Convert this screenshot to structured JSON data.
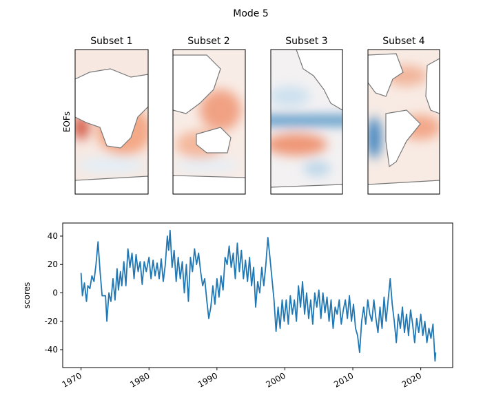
{
  "title": "Mode 5",
  "maps": {
    "ylabel": "EOFs",
    "titles": [
      "Subset 1",
      "Subset 2",
      "Subset 3",
      "Subset 4"
    ]
  },
  "chart_data": {
    "type": "line",
    "ylabel": "scores",
    "color": "#1f77b4",
    "xlim": [
      1967.3,
      2024.7
    ],
    "xticks": [
      1970,
      1980,
      1990,
      2000,
      2010,
      2020
    ],
    "ylim": [
      -52.6,
      49.2
    ],
    "yticks": [
      -40,
      -20,
      0,
      20,
      40
    ],
    "x": [
      1970.0,
      1970.2,
      1970.5,
      1970.8,
      1971.0,
      1971.3,
      1971.6,
      1971.9,
      1972.2,
      1972.5,
      1972.8,
      1973.1,
      1973.6,
      1973.8,
      1974.1,
      1974.4,
      1974.7,
      1975.0,
      1975.3,
      1975.5,
      1975.8,
      1976.0,
      1976.3,
      1976.6,
      1976.9,
      1977.2,
      1977.5,
      1977.8,
      1978.1,
      1978.4,
      1978.7,
      1979.0,
      1979.3,
      1979.6,
      1980.0,
      1980.3,
      1980.6,
      1980.9,
      1981.2,
      1981.5,
      1981.8,
      1982.1,
      1982.4,
      1982.7,
      1982.9,
      1983.1,
      1983.4,
      1983.7,
      1984.0,
      1984.3,
      1984.6,
      1984.9,
      1985.2,
      1985.5,
      1985.8,
      1986.1,
      1986.4,
      1986.7,
      1987.0,
      1987.3,
      1987.6,
      1987.9,
      1988.2,
      1988.5,
      1988.8,
      1989.1,
      1989.4,
      1989.7,
      1990.0,
      1990.3,
      1990.6,
      1990.9,
      1991.2,
      1991.5,
      1991.8,
      1992.1,
      1992.4,
      1992.7,
      1993.0,
      1993.3,
      1993.6,
      1993.9,
      1994.2,
      1994.5,
      1994.8,
      1995.1,
      1995.4,
      1995.7,
      1996.0,
      1996.3,
      1996.6,
      1996.9,
      1997.2,
      1997.5,
      1997.8,
      1998.1,
      1998.4,
      1998.7,
      1999.0,
      1999.3,
      1999.6,
      1999.9,
      2000.2,
      2000.5,
      2000.8,
      2001.1,
      2001.4,
      2001.7,
      2002.0,
      2002.3,
      2002.6,
      2002.9,
      2003.2,
      2003.5,
      2003.8,
      2004.1,
      2004.4,
      2004.7,
      2005.0,
      2005.3,
      2005.6,
      2005.9,
      2006.2,
      2006.5,
      2006.8,
      2007.1,
      2007.4,
      2007.7,
      2008.0,
      2008.3,
      2008.6,
      2008.9,
      2009.2,
      2009.5,
      2009.8,
      2010.1,
      2010.4,
      2010.7,
      2011.0,
      2011.3,
      2011.6,
      2011.9,
      2012.2,
      2012.5,
      2012.8,
      2013.1,
      2013.4,
      2013.7,
      2014.0,
      2014.3,
      2014.6,
      2014.9,
      2015.2,
      2015.5,
      2015.8,
      2016.1,
      2016.4,
      2016.7,
      2017.0,
      2017.3,
      2017.6,
      2017.9,
      2018.2,
      2018.5,
      2018.8,
      2019.1,
      2019.4,
      2019.7,
      2020.0,
      2020.3,
      2020.6,
      2020.9,
      2021.2,
      2021.5,
      2021.8,
      2022.1,
      2022.2
    ],
    "values": [
      14,
      -2,
      7,
      -6,
      5,
      3,
      12,
      8,
      20,
      36,
      15,
      -2,
      -2,
      -20,
      0,
      -6,
      10,
      -5,
      17,
      2,
      15,
      5,
      22,
      5,
      31,
      18,
      28,
      10,
      27,
      15,
      22,
      6,
      22,
      15,
      25,
      10,
      23,
      12,
      21,
      10,
      24,
      8,
      20,
      40,
      30,
      44,
      18,
      30,
      8,
      25,
      10,
      22,
      0,
      20,
      -6,
      25,
      15,
      31,
      20,
      28,
      15,
      5,
      10,
      -5,
      -18,
      -10,
      5,
      -8,
      10,
      -3,
      12,
      2,
      25,
      20,
      33,
      18,
      28,
      10,
      35,
      15,
      30,
      10,
      23,
      8,
      25,
      5,
      18,
      -10,
      8,
      0,
      18,
      5,
      20,
      39,
      25,
      10,
      -5,
      -27,
      -10,
      -25,
      -5,
      -20,
      -5,
      -22,
      -2,
      -15,
      -5,
      -20,
      5,
      -10,
      8,
      -15,
      0,
      -18,
      -5,
      -22,
      0,
      -10,
      2,
      -18,
      0,
      -14,
      -3,
      -20,
      -5,
      -25,
      -10,
      -15,
      -5,
      -22,
      -12,
      -5,
      -18,
      -2,
      -20,
      -8,
      -25,
      -30,
      -42,
      -20,
      -10,
      -22,
      -5,
      -15,
      -20,
      -5,
      -18,
      -28,
      -10,
      -25,
      -3,
      -20,
      -5,
      10,
      -8,
      -20,
      -35,
      -15,
      -25,
      -10,
      -28,
      -15,
      -30,
      -12,
      -22,
      -35,
      -18,
      -28,
      -15,
      -30,
      -20,
      -35,
      -25,
      -32,
      -22,
      -48,
      -42
    ]
  }
}
